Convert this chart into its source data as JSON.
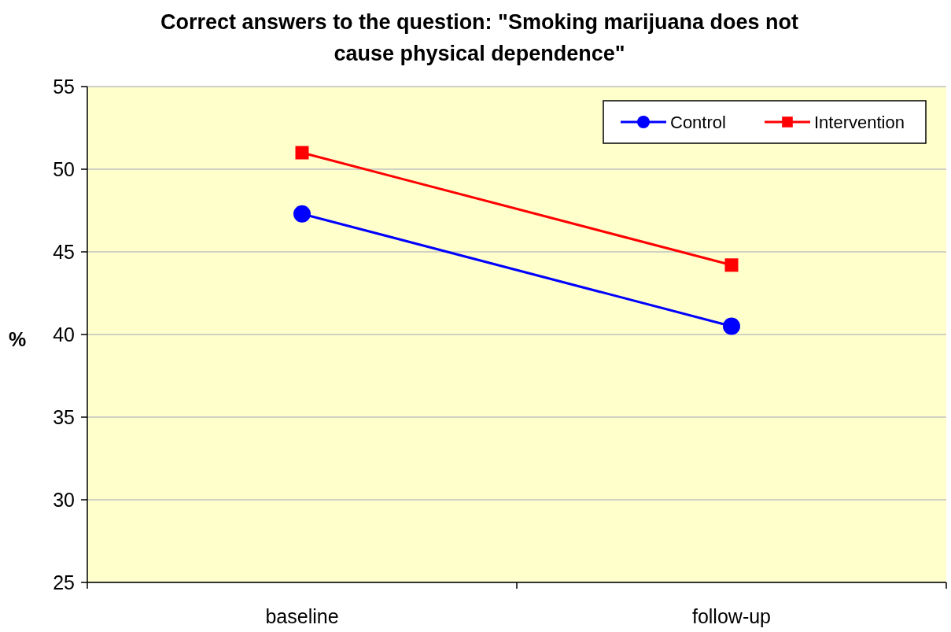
{
  "chart_data": {
    "type": "line",
    "title": "Correct answers to the question: \"Smoking marijuana does not cause physical dependence\"",
    "ylabel": "%",
    "categories": [
      "baseline",
      "follow-up"
    ],
    "series": [
      {
        "name": "Control",
        "color": "#0000ff",
        "values": [
          47.3,
          40.5
        ]
      },
      {
        "name": "Intervention",
        "color": "#ff0000",
        "values": [
          51.0,
          44.2
        ],
        "marker": "square"
      }
    ],
    "ylim": [
      25,
      55
    ],
    "yticks": [
      25,
      30,
      35,
      40,
      45,
      50,
      55
    ],
    "grid": "y",
    "legend": "top right",
    "marker": "circle",
    "line_style": "solid"
  }
}
